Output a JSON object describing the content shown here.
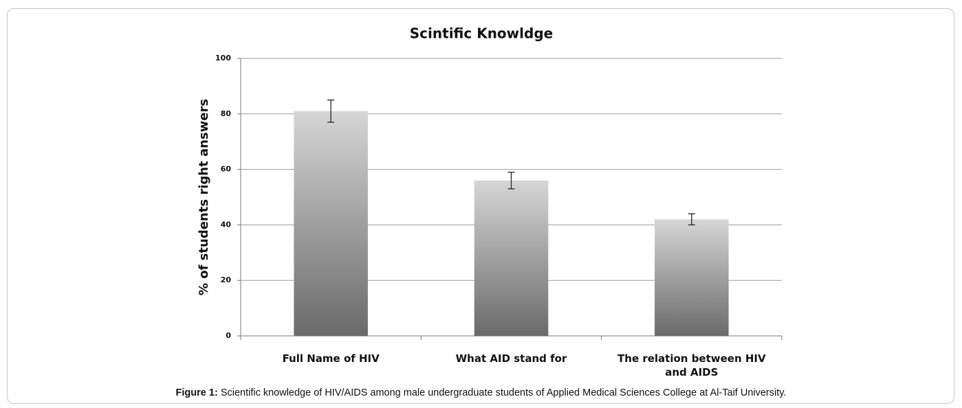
{
  "chart_data": {
    "type": "bar",
    "title": "Scintific Knowldge",
    "y_label": "% of students right answers",
    "categories": [
      "Full Name of HIV",
      "What AID stand for",
      "The relation between HIV and AIDS"
    ],
    "values": [
      81,
      56,
      42
    ],
    "errors": [
      4,
      3,
      2
    ],
    "gradient": [
      "#d6d6d6",
      "#6a6a6a"
    ],
    "ylim": [
      0,
      100
    ],
    "yticks": [
      0,
      20,
      40,
      60,
      80,
      100
    ],
    "grid": true
  },
  "caption": {
    "label": "Figure 1:",
    "text": "Scientific knowledge of HIV/AIDS among male undergraduate students of Applied Medical Sciences College at Al-Taif University."
  }
}
